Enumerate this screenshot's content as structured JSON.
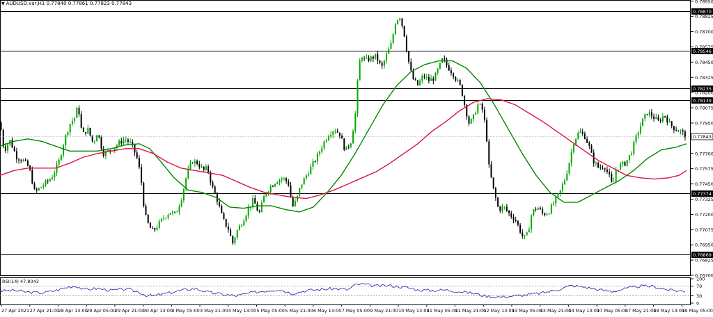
{
  "window": {
    "symbol_line": "AUDUSD.var,H1  0.77840 0.77861 0.77823 0.77843",
    "dropdown_icon": "triangle-down-icon"
  },
  "colors": {
    "bull": "#00aa00",
    "bear": "#000000",
    "ma_fast": "#008800",
    "ma_slow": "#dd1144",
    "hline": "#000000",
    "rsi": "#1a1aa6",
    "grid": "#c8c8c8"
  },
  "chart_data": [
    {
      "type": "candlestick",
      "title": "AUDUSD.var,H1",
      "ohlc_header": "0.77840 0.77861 0.77823 0.77843",
      "ylim": [
        0.767,
        0.7896
      ],
      "y_tick_labels": [
        "0.78950",
        "0.78825",
        "0.78700",
        "0.78575",
        "0.78450",
        "0.78325",
        "0.78200",
        "0.78075",
        "0.77950",
        "0.77825",
        "0.77700",
        "0.77575",
        "0.77450",
        "0.77325",
        "0.77200",
        "0.77075",
        "0.76950",
        "0.76825",
        "0.76700"
      ],
      "y_ticks": [
        0.7895,
        0.78825,
        0.787,
        0.78575,
        0.7845,
        0.78325,
        0.782,
        0.78075,
        0.7795,
        0.77825,
        0.777,
        0.77575,
        0.7745,
        0.77325,
        0.772,
        0.77075,
        0.7695,
        0.76825,
        0.767
      ],
      "x_tick_labels": [
        "27 Apr 2021",
        "27 Apr 21:00",
        "28 Apr 13:00",
        "29 Apr 05:00",
        "29 Apr 21:00",
        "30 Apr 13:00",
        "3 May 05:00",
        "3 May 21:00",
        "4 May 13:00",
        "5 May 05:00",
        "5 May 21:00",
        "6 May 13:00",
        "7 May 05:00",
        "9 May 21:00",
        "10 May 13:00",
        "11 May 05:00",
        "11 May 21:00",
        "12 May 13:00",
        "13 May 05:00",
        "13 May 21:00",
        "14 May 13:00",
        "17 May 05:00",
        "17 May 21:00",
        "18 May 13:00",
        "19 May 05:00"
      ],
      "horizontal_levels": [
        {
          "value": 0.7887,
          "label": "0.78870"
        },
        {
          "value": 0.78546,
          "label": "0.78546"
        },
        {
          "value": 0.78235,
          "label": "0.78235"
        },
        {
          "value": 0.78139,
          "label": "0.78139"
        },
        {
          "value": 0.77374,
          "label": "0.77374"
        },
        {
          "value": 0.76869,
          "label": "0.76869"
        }
      ],
      "current_price": {
        "value": 0.77843,
        "label": "0.77843"
      },
      "close_path": [
        [
          0,
          0.7795
        ],
        [
          6,
          0.7772
        ],
        [
          14,
          0.7781
        ],
        [
          24,
          0.7767
        ],
        [
          34,
          0.7764
        ],
        [
          42,
          0.7758
        ],
        [
          50,
          0.7738
        ],
        [
          58,
          0.7742
        ],
        [
          66,
          0.7746
        ],
        [
          74,
          0.775
        ],
        [
          84,
          0.7762
        ],
        [
          92,
          0.778
        ],
        [
          100,
          0.7794
        ],
        [
          108,
          0.78
        ],
        [
          112,
          0.781
        ],
        [
          118,
          0.7785
        ],
        [
          126,
          0.779
        ],
        [
          134,
          0.7778
        ],
        [
          140,
          0.7788
        ],
        [
          148,
          0.777
        ],
        [
          156,
          0.7772
        ],
        [
          164,
          0.7775
        ],
        [
          172,
          0.7779
        ],
        [
          180,
          0.7782
        ],
        [
          188,
          0.7778
        ],
        [
          196,
          0.7768
        ],
        [
          202,
          0.7752
        ],
        [
          208,
          0.772
        ],
        [
          214,
          0.771
        ],
        [
          220,
          0.7706
        ],
        [
          228,
          0.7712
        ],
        [
          236,
          0.7718
        ],
        [
          244,
          0.7722
        ],
        [
          252,
          0.772
        ],
        [
          260,
          0.7732
        ],
        [
          268,
          0.7752
        ],
        [
          276,
          0.7764
        ],
        [
          284,
          0.7762
        ],
        [
          292,
          0.7756
        ],
        [
          298,
          0.7758
        ],
        [
          304,
          0.7744
        ],
        [
          312,
          0.7732
        ],
        [
          320,
          0.7716
        ],
        [
          328,
          0.7708
        ],
        [
          334,
          0.7696
        ],
        [
          340,
          0.7706
        ],
        [
          348,
          0.7714
        ],
        [
          356,
          0.7724
        ],
        [
          364,
          0.7732
        ],
        [
          372,
          0.772
        ],
        [
          380,
          0.7736
        ],
        [
          390,
          0.7744
        ],
        [
          398,
          0.7748
        ],
        [
          406,
          0.775
        ],
        [
          414,
          0.7746
        ],
        [
          420,
          0.7726
        ],
        [
          426,
          0.7732
        ],
        [
          432,
          0.7744
        ],
        [
          440,
          0.7752
        ],
        [
          448,
          0.776
        ],
        [
          456,
          0.7768
        ],
        [
          464,
          0.7778
        ],
        [
          472,
          0.7786
        ],
        [
          480,
          0.779
        ],
        [
          488,
          0.7786
        ],
        [
          496,
          0.7772
        ],
        [
          504,
          0.778
        ],
        [
          510,
          0.78
        ],
        [
          514,
          0.7832
        ],
        [
          518,
          0.7852
        ],
        [
          524,
          0.7846
        ],
        [
          532,
          0.7848
        ],
        [
          540,
          0.785
        ],
        [
          548,
          0.784
        ],
        [
          556,
          0.7852
        ],
        [
          562,
          0.786
        ],
        [
          568,
          0.7878
        ],
        [
          574,
          0.7883
        ],
        [
          580,
          0.787
        ],
        [
          586,
          0.7848
        ],
        [
          592,
          0.7832
        ],
        [
          600,
          0.7826
        ],
        [
          608,
          0.7834
        ],
        [
          616,
          0.783
        ],
        [
          624,
          0.7832
        ],
        [
          630,
          0.784
        ],
        [
          636,
          0.7848
        ],
        [
          642,
          0.7842
        ],
        [
          650,
          0.7836
        ],
        [
          656,
          0.783
        ],
        [
          662,
          0.7824
        ],
        [
          668,
          0.7808
        ],
        [
          674,
          0.7794
        ],
        [
          680,
          0.78
        ],
        [
          686,
          0.781
        ],
        [
          692,
          0.7808
        ],
        [
          698,
          0.779
        ],
        [
          702,
          0.776
        ],
        [
          708,
          0.7742
        ],
        [
          716,
          0.7724
        ],
        [
          724,
          0.7726
        ],
        [
          732,
          0.772
        ],
        [
          740,
          0.7716
        ],
        [
          746,
          0.7708
        ],
        [
          752,
          0.77
        ],
        [
          758,
          0.7704
        ],
        [
          764,
          0.7722
        ],
        [
          772,
          0.7726
        ],
        [
          780,
          0.772
        ],
        [
          788,
          0.7722
        ],
        [
          796,
          0.773
        ],
        [
          804,
          0.7738
        ],
        [
          812,
          0.775
        ],
        [
          818,
          0.7764
        ],
        [
          824,
          0.778
        ],
        [
          832,
          0.7788
        ],
        [
          840,
          0.7784
        ],
        [
          846,
          0.7776
        ],
        [
          852,
          0.7764
        ],
        [
          860,
          0.7758
        ],
        [
          868,
          0.776
        ],
        [
          876,
          0.775
        ],
        [
          880,
          0.7742
        ],
        [
          884,
          0.7756
        ],
        [
          890,
          0.776
        ],
        [
          898,
          0.7762
        ],
        [
          906,
          0.777
        ],
        [
          914,
          0.7784
        ],
        [
          922,
          0.7796
        ],
        [
          930,
          0.7804
        ],
        [
          938,
          0.78
        ],
        [
          946,
          0.7796
        ],
        [
          954,
          0.7802
        ],
        [
          962,
          0.7794
        ],
        [
          970,
          0.779
        ],
        [
          978,
          0.7788
        ],
        [
          986,
          0.7784
        ]
      ],
      "series": [
        {
          "kind": "moving-average",
          "color": "#008800",
          "points": [
            [
              0,
              0.7776
            ],
            [
              20,
              0.778
            ],
            [
              40,
              0.7782
            ],
            [
              60,
              0.778
            ],
            [
              80,
              0.7776
            ],
            [
              100,
              0.7772
            ],
            [
              120,
              0.7772
            ],
            [
              140,
              0.7772
            ],
            [
              160,
              0.7774
            ],
            [
              180,
              0.7777
            ],
            [
              200,
              0.7778
            ],
            [
              215,
              0.7774
            ],
            [
              230,
              0.7764
            ],
            [
              250,
              0.775
            ],
            [
              270,
              0.774
            ],
            [
              290,
              0.7738
            ],
            [
              310,
              0.7734
            ],
            [
              330,
              0.7726
            ],
            [
              350,
              0.7725
            ],
            [
              370,
              0.7727
            ],
            [
              390,
              0.7727
            ],
            [
              410,
              0.7724
            ],
            [
              430,
              0.7722
            ],
            [
              450,
              0.7726
            ],
            [
              470,
              0.7738
            ],
            [
              490,
              0.7752
            ],
            [
              510,
              0.777
            ],
            [
              530,
              0.779
            ],
            [
              550,
              0.781
            ],
            [
              570,
              0.7826
            ],
            [
              590,
              0.7837
            ],
            [
              610,
              0.7843
            ],
            [
              630,
              0.7846
            ],
            [
              650,
              0.7846
            ],
            [
              670,
              0.784
            ],
            [
              690,
              0.7828
            ],
            [
              710,
              0.781
            ],
            [
              730,
              0.779
            ],
            [
              750,
              0.777
            ],
            [
              770,
              0.7752
            ],
            [
              790,
              0.7738
            ],
            [
              810,
              0.773
            ],
            [
              830,
              0.773
            ],
            [
              850,
              0.7736
            ],
            [
              870,
              0.7742
            ],
            [
              890,
              0.7748
            ],
            [
              910,
              0.7756
            ],
            [
              930,
              0.7766
            ],
            [
              950,
              0.7773
            ],
            [
              970,
              0.7775
            ],
            [
              986,
              0.7778
            ]
          ]
        },
        {
          "kind": "moving-average",
          "color": "#dd1144",
          "points": [
            [
              0,
              0.7752
            ],
            [
              20,
              0.7756
            ],
            [
              40,
              0.7758
            ],
            [
              60,
              0.7758
            ],
            [
              80,
              0.7758
            ],
            [
              100,
              0.7762
            ],
            [
              120,
              0.7767
            ],
            [
              140,
              0.777
            ],
            [
              160,
              0.7772
            ],
            [
              180,
              0.7774
            ],
            [
              200,
              0.7774
            ],
            [
              220,
              0.777
            ],
            [
              240,
              0.7763
            ],
            [
              260,
              0.7758
            ],
            [
              280,
              0.7756
            ],
            [
              300,
              0.7754
            ],
            [
              320,
              0.7752
            ],
            [
              340,
              0.7747
            ],
            [
              360,
              0.7742
            ],
            [
              380,
              0.7738
            ],
            [
              400,
              0.7736
            ],
            [
              420,
              0.7734
            ],
            [
              440,
              0.7733
            ],
            [
              460,
              0.7736
            ],
            [
              480,
              0.774
            ],
            [
              500,
              0.7745
            ],
            [
              520,
              0.775
            ],
            [
              540,
              0.7755
            ],
            [
              560,
              0.7762
            ],
            [
              580,
              0.777
            ],
            [
              600,
              0.7778
            ],
            [
              620,
              0.7788
            ],
            [
              640,
              0.7796
            ],
            [
              660,
              0.7805
            ],
            [
              680,
              0.7812
            ],
            [
              700,
              0.7815
            ],
            [
              720,
              0.7814
            ],
            [
              740,
              0.781
            ],
            [
              760,
              0.7803
            ],
            [
              780,
              0.7796
            ],
            [
              800,
              0.7788
            ],
            [
              820,
              0.778
            ],
            [
              840,
              0.7772
            ],
            [
              860,
              0.7764
            ],
            [
              880,
              0.7758
            ],
            [
              900,
              0.7752
            ],
            [
              920,
              0.775
            ],
            [
              940,
              0.7749
            ],
            [
              960,
              0.775
            ],
            [
              975,
              0.7752
            ],
            [
              986,
              0.7756
            ]
          ]
        }
      ]
    },
    {
      "type": "line",
      "title": "RSI(14) 47.8043",
      "ylim": [
        0,
        100
      ],
      "y_tick_labels": [
        "100",
        "70",
        "30",
        "0"
      ],
      "y_ticks": [
        100,
        70,
        30,
        0
      ],
      "levels": [
        70,
        30
      ],
      "rsi_path": [
        [
          0,
          50
        ],
        [
          20,
          52
        ],
        [
          40,
          45
        ],
        [
          60,
          42
        ],
        [
          80,
          52
        ],
        [
          100,
          68
        ],
        [
          110,
          70
        ],
        [
          120,
          56
        ],
        [
          140,
          60
        ],
        [
          160,
          52
        ],
        [
          180,
          58
        ],
        [
          200,
          45
        ],
        [
          210,
          32
        ],
        [
          220,
          30
        ],
        [
          240,
          40
        ],
        [
          260,
          52
        ],
        [
          280,
          60
        ],
        [
          300,
          44
        ],
        [
          320,
          36
        ],
        [
          340,
          30
        ],
        [
          360,
          42
        ],
        [
          380,
          50
        ],
        [
          400,
          56
        ],
        [
          420,
          40
        ],
        [
          440,
          52
        ],
        [
          460,
          56
        ],
        [
          480,
          60
        ],
        [
          500,
          55
        ],
        [
          510,
          75
        ],
        [
          520,
          78
        ],
        [
          540,
          70
        ],
        [
          560,
          72
        ],
        [
          580,
          66
        ],
        [
          600,
          54
        ],
        [
          620,
          52
        ],
        [
          640,
          54
        ],
        [
          660,
          48
        ],
        [
          680,
          40
        ],
        [
          700,
          28
        ],
        [
          720,
          25
        ],
        [
          740,
          30
        ],
        [
          760,
          35
        ],
        [
          780,
          42
        ],
        [
          800,
          55
        ],
        [
          820,
          72
        ],
        [
          840,
          66
        ],
        [
          860,
          55
        ],
        [
          880,
          48
        ],
        [
          900,
          60
        ],
        [
          920,
          70
        ],
        [
          940,
          68
        ],
        [
          960,
          54
        ],
        [
          986,
          48
        ]
      ]
    }
  ]
}
